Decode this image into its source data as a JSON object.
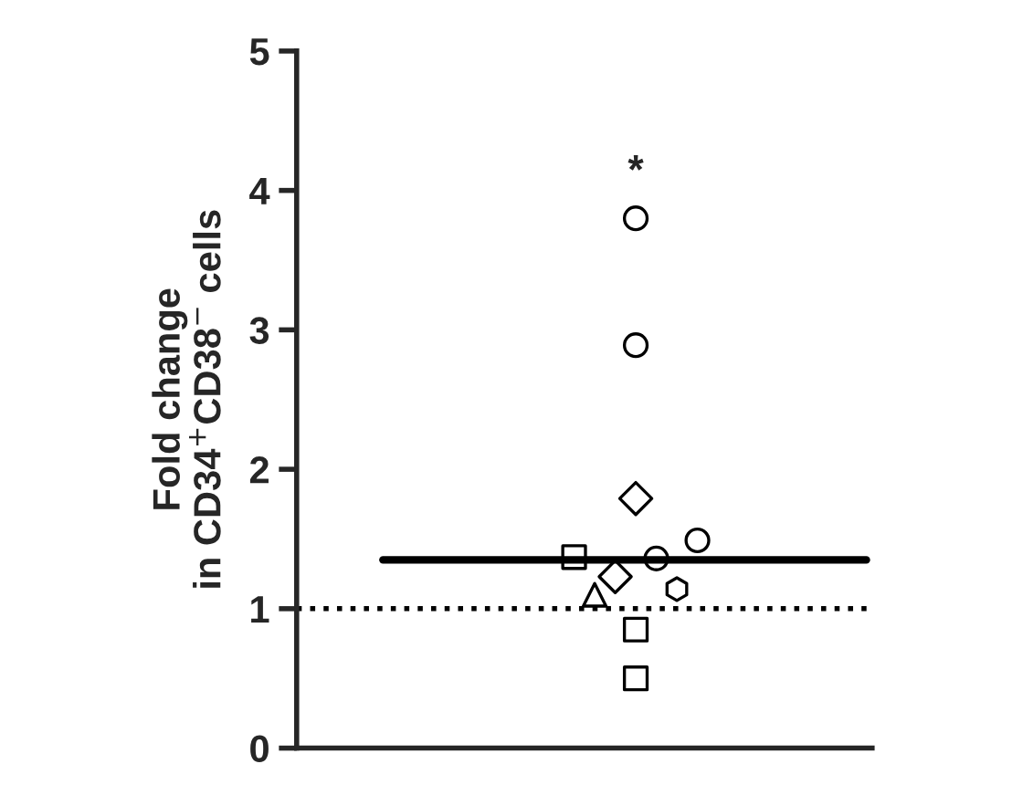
{
  "chart_data": {
    "type": "scatter",
    "ylabel": "Fold change\nin CD34$^{+}$CD38$^{−}$ cells",
    "categories": [
      null,
      null,
      null,
      null,
      null,
      null,
      null,
      null,
      null,
      null,
      null,
      null,
      null,
      null,
      null,
      null,
      null,
      null,
      null,
      null,
      null,
      null,
      null,
      null,
      null,
      null,
      null,
      null
    ],
    "series": [
      {
        "color": "#000000",
        "marker": "square",
        "values": [
          null,
          null,
          null,
          null,
          null,
          null,
          null,
          null,
          null,
          null,
          null,
          null,
          null,
          1.37,
          null,
          null,
          null,
          null,
          null,
          null,
          null,
          null,
          null,
          null,
          null,
          null,
          null,
          null
        ]
      },
      {
        "color": "#000000",
        "marker": "triangle",
        "values": [
          null,
          null,
          null,
          null,
          null,
          null,
          null,
          null,
          null,
          null,
          null,
          null,
          null,
          null,
          1.1,
          null,
          null,
          null,
          null,
          null,
          null,
          null,
          null,
          null,
          null,
          null,
          null,
          null
        ]
      },
      {
        "color": "#000000",
        "marker": "diamond",
        "values": [
          null,
          null,
          null,
          null,
          null,
          null,
          null,
          null,
          null,
          null,
          null,
          null,
          null,
          null,
          null,
          1.23,
          null,
          null,
          null,
          null,
          null,
          null,
          null,
          null,
          null,
          null,
          null,
          null
        ]
      },
      {
        "color": "#000000",
        "marker": "circle",
        "values": [
          null,
          null,
          null,
          null,
          null,
          null,
          null,
          null,
          null,
          null,
          null,
          null,
          null,
          null,
          null,
          null,
          3.8,
          null,
          null,
          null,
          null,
          null,
          null,
          null,
          null,
          null,
          null,
          null
        ]
      },
      {
        "color": "#000000",
        "marker": "circle",
        "values": [
          null,
          null,
          null,
          null,
          null,
          null,
          null,
          null,
          null,
          null,
          null,
          null,
          null,
          null,
          null,
          null,
          2.89,
          null,
          null,
          null,
          null,
          null,
          null,
          null,
          null,
          null,
          null,
          null
        ]
      },
      {
        "color": "#000000",
        "marker": "diamond",
        "values": [
          null,
          null,
          null,
          null,
          null,
          null,
          null,
          null,
          null,
          null,
          null,
          null,
          null,
          null,
          null,
          null,
          1.79,
          null,
          null,
          null,
          null,
          null,
          null,
          null,
          null,
          null,
          null,
          null
        ]
      },
      {
        "color": "#000000",
        "marker": "square",
        "values": [
          null,
          null,
          null,
          null,
          null,
          null,
          null,
          null,
          null,
          null,
          null,
          null,
          null,
          null,
          null,
          null,
          0.85,
          null,
          null,
          null,
          null,
          null,
          null,
          null,
          null,
          null,
          null,
          null
        ]
      },
      {
        "color": "#000000",
        "marker": "square",
        "values": [
          null,
          null,
          null,
          null,
          null,
          null,
          null,
          null,
          null,
          null,
          null,
          null,
          null,
          null,
          null,
          null,
          0.5,
          null,
          null,
          null,
          null,
          null,
          null,
          null,
          null,
          null,
          null,
          null
        ]
      },
      {
        "color": "#000000",
        "marker": "circle",
        "values": [
          null,
          null,
          null,
          null,
          null,
          null,
          null,
          null,
          null,
          null,
          null,
          null,
          null,
          null,
          null,
          null,
          null,
          1.36,
          null,
          null,
          null,
          null,
          null,
          null,
          null,
          null,
          null,
          null
        ]
      },
      {
        "color": "#000000",
        "values": [
          null,
          null,
          null,
          null,
          null,
          null,
          null,
          null,
          null,
          null,
          null,
          null,
          null,
          null,
          null,
          null,
          null,
          null,
          1.14,
          null,
          null,
          null,
          null,
          null,
          null,
          null,
          null,
          null
        ]
      },
      {
        "color": "#000000",
        "marker": "circle",
        "values": [
          null,
          null,
          null,
          null,
          null,
          null,
          null,
          null,
          null,
          null,
          null,
          null,
          null,
          null,
          null,
          null,
          null,
          null,
          null,
          1.49,
          null,
          null,
          null,
          null,
          null,
          null,
          null,
          null
        ]
      }
    ],
    "ref_lines": [
      {
        "axis": "y",
        "value": 1.35,
        "line_style": "solid",
        "color": "#000000"
      },
      {
        "axis": "y",
        "value": 1,
        "line_style": "dotted",
        "color": "#000000"
      }
    ],
    "annotations": [
      "*"
    ],
    "ylim": [
      0,
      5
    ],
    "yticks": [
      0,
      1,
      2,
      3,
      4,
      5
    ],
    "grid": false,
    "tick_labels": "y"
  }
}
